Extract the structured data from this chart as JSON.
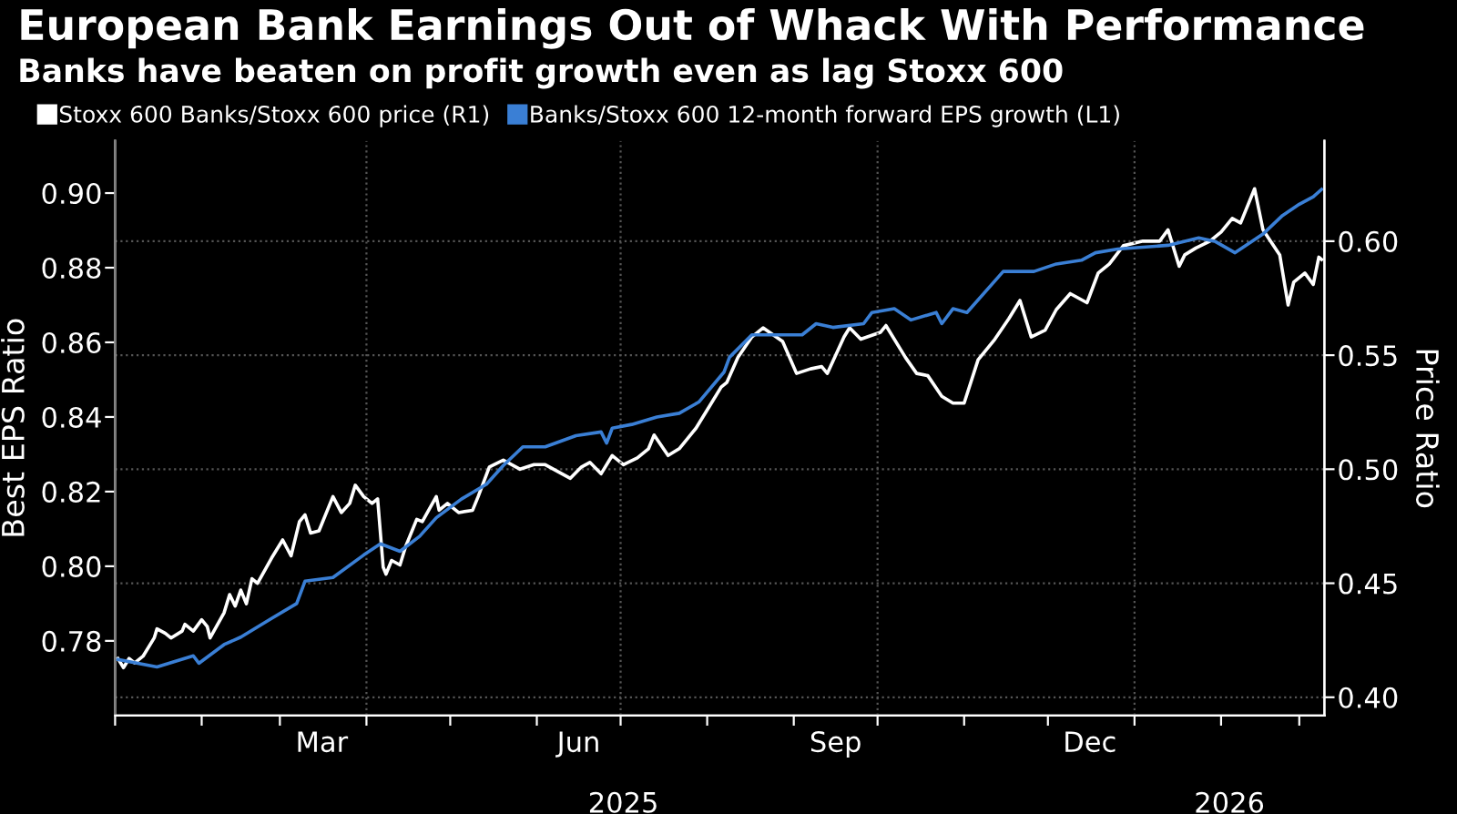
{
  "chart_data": {
    "type": "line",
    "title": "European Bank Earnings Out of Whack With Performance",
    "subtitle": "Banks have beaten on profit growth even as lag Stoxx 600",
    "ylabel": "Best EPS Ratio",
    "y2label": "Price Ratio",
    "legend": "top left",
    "grid": "y",
    "marker": "none",
    "line_style": "solid",
    "xlim": [
      "2025-01-01",
      "2026-03-10"
    ],
    "xticks": [
      {
        "value": "2025-01-01",
        "label": null
      },
      {
        "value": "2025-02-01",
        "label": null
      },
      {
        "value": "2025-03-01",
        "label": null
      },
      {
        "value": "2025-03-16",
        "label": "Mar"
      },
      {
        "value": "2025-04-01",
        "label": null
      },
      {
        "value": "2025-05-01",
        "label": null
      },
      {
        "value": "2025-06-01",
        "label": null
      },
      {
        "value": "2025-06-16",
        "label": "Jun"
      },
      {
        "value": "2025-07-01",
        "label": null
      },
      {
        "value": "2025-08-01",
        "label": null
      },
      {
        "value": "2025-09-01",
        "label": null
      },
      {
        "value": "2025-09-16",
        "label": "Sep"
      },
      {
        "value": "2025-10-01",
        "label": null
      },
      {
        "value": "2025-11-01",
        "label": null
      },
      {
        "value": "2025-12-01",
        "label": null
      },
      {
        "value": "2025-12-16",
        "label": "Dec"
      },
      {
        "value": "2026-01-01",
        "label": null
      },
      {
        "value": "2026-02-01",
        "label": null
      },
      {
        "value": "2026-03-01",
        "label": null
      }
    ],
    "x2lim": [
      "2025-01-01",
      "2026-03-10"
    ],
    "x2ticks": [
      {
        "value": "2025-07-02",
        "label": "2025"
      },
      {
        "value": "2026-01-01",
        "label": null
      },
      {
        "value": "2026-02-04",
        "label": "2026"
      }
    ],
    "ylim": [
      0.76,
      0.914
    ],
    "yticks": [
      {
        "value": 0.78,
        "label": "0.78"
      },
      {
        "value": 0.8,
        "label": "0.80"
      },
      {
        "value": 0.82,
        "label": "0.82"
      },
      {
        "value": 0.84,
        "label": "0.84"
      },
      {
        "value": 0.86,
        "label": "0.86"
      },
      {
        "value": 0.88,
        "label": "0.88"
      },
      {
        "value": 0.9,
        "label": "0.90"
      }
    ],
    "y2lim": [
      0.392,
      0.644
    ],
    "y2ticks": [
      {
        "value": 0.4,
        "label": "0.40"
      },
      {
        "value": 0.45,
        "label": "0.45"
      },
      {
        "value": 0.5,
        "label": "0.50"
      },
      {
        "value": 0.55,
        "label": "0.55"
      },
      {
        "value": 0.6,
        "label": "0.60"
      }
    ],
    "ref_lines": [
      {
        "axis": "x",
        "value": "2025-04-01",
        "label": null,
        "color": "#555555",
        "line_style": "dotted"
      },
      {
        "axis": "x",
        "value": "2025-07-01",
        "label": null,
        "color": "#555555",
        "line_style": "dotted"
      },
      {
        "axis": "x",
        "value": "2025-10-01",
        "label": null,
        "color": "#555555",
        "line_style": "dotted"
      },
      {
        "axis": "x",
        "value": "2026-01-01",
        "label": null,
        "color": "#555555",
        "line_style": "dotted"
      }
    ],
    "series": [
      {
        "name": "Stoxx 600 Banks/Stoxx 600 price (R1)",
        "color": "#ffffff",
        "axis": "y2",
        "x": [
          "2025-01-02",
          "2025-01-04",
          "2025-01-06",
          "2025-01-08",
          "2025-01-11",
          "2025-01-15",
          "2025-01-16",
          "2025-01-19",
          "2025-01-21",
          "2025-01-25",
          "2025-01-26",
          "2025-01-29",
          "2025-02-01",
          "2025-02-03",
          "2025-02-04",
          "2025-02-09",
          "2025-02-11",
          "2025-02-13",
          "2025-02-15",
          "2025-02-17",
          "2025-02-19",
          "2025-02-21",
          "2025-02-26",
          "2025-03-02",
          "2025-03-05",
          "2025-03-08",
          "2025-03-10",
          "2025-03-12",
          "2025-03-15",
          "2025-03-20",
          "2025-03-23",
          "2025-03-26",
          "2025-03-28",
          "2025-03-31",
          "2025-04-03",
          "2025-04-05",
          "2025-04-07",
          "2025-04-08",
          "2025-04-10",
          "2025-04-13",
          "2025-04-15",
          "2025-04-19",
          "2025-04-21",
          "2025-04-26",
          "2025-04-27",
          "2025-04-30",
          "2025-05-04",
          "2025-05-09",
          "2025-05-11",
          "2025-05-15",
          "2025-05-20",
          "2025-05-26",
          "2025-05-31",
          "2025-06-04",
          "2025-06-13",
          "2025-06-17",
          "2025-06-20",
          "2025-06-24",
          "2025-06-28",
          "2025-07-02",
          "2025-07-07",
          "2025-07-11",
          "2025-07-13",
          "2025-07-18",
          "2025-07-22",
          "2025-07-28",
          "2025-08-02",
          "2025-08-06",
          "2025-08-08",
          "2025-08-12",
          "2025-08-17",
          "2025-08-21",
          "2025-08-28",
          "2025-09-02",
          "2025-09-07",
          "2025-09-11",
          "2025-09-13",
          "2025-09-19",
          "2025-09-21",
          "2025-09-25",
          "2025-10-02",
          "2025-10-04",
          "2025-10-11",
          "2025-10-15",
          "2025-10-19",
          "2025-10-24",
          "2025-10-28",
          "2025-11-01",
          "2025-11-06",
          "2025-11-12",
          "2025-11-17",
          "2025-11-21",
          "2025-11-25",
          "2025-11-30",
          "2025-12-04",
          "2025-12-09",
          "2025-12-15",
          "2025-12-19",
          "2025-12-23",
          "2025-12-28",
          "2026-01-04",
          "2026-01-10",
          "2026-01-13",
          "2026-01-17",
          "2026-01-19",
          "2026-01-23",
          "2026-01-28",
          "2026-02-01",
          "2026-02-05",
          "2026-02-08",
          "2026-02-13",
          "2026-02-16",
          "2026-02-22",
          "2026-02-25",
          "2026-02-27",
          "2026-03-03",
          "2026-03-06",
          "2026-03-08",
          "2026-03-09"
        ],
        "values": [
          0.417,
          0.413,
          0.417,
          0.415,
          0.418,
          0.426,
          0.43,
          0.428,
          0.426,
          0.429,
          0.432,
          0.429,
          0.434,
          0.431,
          0.426,
          0.437,
          0.445,
          0.44,
          0.447,
          0.441,
          0.452,
          0.45,
          0.461,
          0.469,
          0.462,
          0.477,
          0.48,
          0.472,
          0.473,
          0.488,
          0.481,
          0.485,
          0.493,
          0.488,
          0.485,
          0.487,
          0.457,
          0.454,
          0.46,
          0.458,
          0.466,
          0.478,
          0.477,
          0.488,
          0.482,
          0.485,
          0.481,
          0.482,
          0.488,
          0.501,
          0.504,
          0.5,
          0.502,
          0.502,
          0.496,
          0.501,
          0.503,
          0.498,
          0.506,
          0.502,
          0.505,
          0.509,
          0.515,
          0.506,
          0.509,
          0.518,
          0.528,
          0.536,
          0.538,
          0.549,
          0.558,
          0.562,
          0.556,
          0.542,
          0.544,
          0.545,
          0.542,
          0.558,
          0.562,
          0.557,
          0.56,
          0.563,
          0.549,
          0.542,
          0.541,
          0.532,
          0.529,
          0.529,
          0.548,
          0.557,
          0.566,
          0.574,
          0.558,
          0.561,
          0.57,
          0.577,
          0.573,
          0.586,
          0.59,
          0.598,
          0.6,
          0.6,
          0.605,
          0.589,
          0.594,
          0.597,
          0.6,
          0.604,
          0.61,
          0.608,
          0.623,
          0.605,
          0.594,
          0.572,
          0.582,
          0.586,
          0.581,
          0.593,
          0.592
        ]
      },
      {
        "name": "Banks/Stoxx 600 12-month forward EPS growth (L1)",
        "color": "#3a7fd5",
        "axis": "y",
        "x": [
          "2025-01-02",
          "2025-01-16",
          "2025-01-29",
          "2025-01-31",
          "2025-02-09",
          "2025-02-15",
          "2025-02-26",
          "2025-03-07",
          "2025-03-10",
          "2025-03-20",
          "2025-03-31",
          "2025-04-06",
          "2025-04-13",
          "2025-04-20",
          "2025-04-26",
          "2025-05-05",
          "2025-05-14",
          "2025-05-20",
          "2025-05-27",
          "2025-06-04",
          "2025-06-15",
          "2025-06-24",
          "2025-06-26",
          "2025-06-28",
          "2025-07-05",
          "2025-07-14",
          "2025-07-22",
          "2025-07-29",
          "2025-08-07",
          "2025-08-09",
          "2025-08-17",
          "2025-09-04",
          "2025-09-09",
          "2025-09-15",
          "2025-09-26",
          "2025-09-29",
          "2025-10-07",
          "2025-10-13",
          "2025-10-22",
          "2025-10-24",
          "2025-10-28",
          "2025-11-02",
          "2025-11-15",
          "2025-11-26",
          "2025-12-04",
          "2025-12-13",
          "2025-12-18",
          "2025-12-26",
          "2026-01-13",
          "2026-01-24",
          "2026-01-30",
          "2026-02-06",
          "2026-02-16",
          "2026-02-23",
          "2026-03-01",
          "2026-03-06",
          "2026-03-09"
        ],
        "values": [
          0.775,
          0.773,
          0.776,
          0.774,
          0.779,
          0.781,
          0.786,
          0.79,
          0.796,
          0.797,
          0.803,
          0.806,
          0.804,
          0.808,
          0.813,
          0.818,
          0.822,
          0.827,
          0.832,
          0.832,
          0.835,
          0.836,
          0.833,
          0.837,
          0.838,
          0.84,
          0.841,
          0.844,
          0.852,
          0.856,
          0.862,
          0.862,
          0.865,
          0.864,
          0.865,
          0.868,
          0.869,
          0.866,
          0.868,
          0.865,
          0.869,
          0.868,
          0.879,
          0.879,
          0.881,
          0.882,
          0.884,
          0.885,
          0.886,
          0.888,
          0.887,
          0.884,
          0.889,
          0.894,
          0.897,
          0.899,
          0.901
        ]
      }
    ]
  }
}
